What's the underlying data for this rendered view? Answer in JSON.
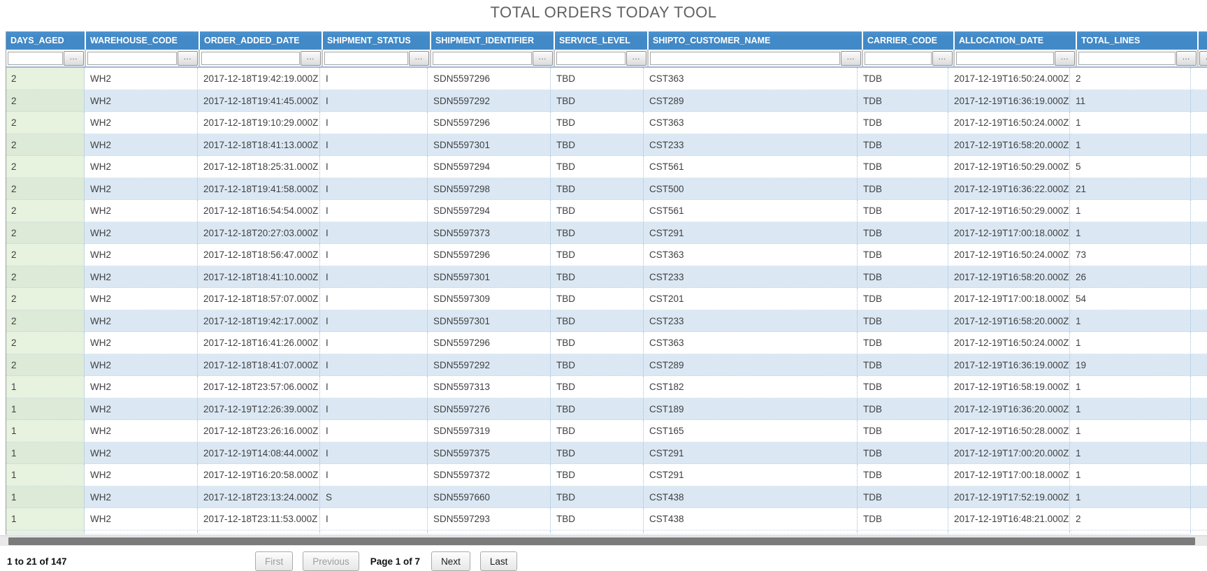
{
  "title": "TOTAL ORDERS TODAY TOOL",
  "table": {
    "columns": [
      {
        "label": "DAYS_AGED"
      },
      {
        "label": "WAREHOUSE_CODE"
      },
      {
        "label": "ORDER_ADDED_DATE"
      },
      {
        "label": "SHIPMENT_STATUS"
      },
      {
        "label": "SHIPMENT_IDENTIFIER"
      },
      {
        "label": "SERVICE_LEVEL"
      },
      {
        "label": "SHIPTO_CUSTOMER_NAME"
      },
      {
        "label": "CARRIER_CODE"
      },
      {
        "label": "ALLOCATION_DATE"
      },
      {
        "label": "TOTAL_LINES"
      }
    ],
    "filter_button_label": "...",
    "rows": [
      [
        "2",
        "WH2",
        "2017-12-18T19:42:19.000Z",
        "I",
        "SDN5597296",
        "TBD",
        "CST363",
        "TDB",
        "2017-12-19T16:50:24.000Z",
        "2"
      ],
      [
        "2",
        "WH2",
        "2017-12-18T19:41:45.000Z",
        "I",
        "SDN5597292",
        "TBD",
        "CST289",
        "TDB",
        "2017-12-19T16:36:19.000Z",
        "11"
      ],
      [
        "2",
        "WH2",
        "2017-12-18T19:10:29.000Z",
        "I",
        "SDN5597296",
        "TBD",
        "CST363",
        "TDB",
        "2017-12-19T16:50:24.000Z",
        "1"
      ],
      [
        "2",
        "WH2",
        "2017-12-18T18:41:13.000Z",
        "I",
        "SDN5597301",
        "TBD",
        "CST233",
        "TDB",
        "2017-12-19T16:58:20.000Z",
        "1"
      ],
      [
        "2",
        "WH2",
        "2017-12-18T18:25:31.000Z",
        "I",
        "SDN5597294",
        "TBD",
        "CST561",
        "TDB",
        "2017-12-19T16:50:29.000Z",
        "5"
      ],
      [
        "2",
        "WH2",
        "2017-12-18T19:41:58.000Z",
        "I",
        "SDN5597298",
        "TBD",
        "CST500",
        "TDB",
        "2017-12-19T16:36:22.000Z",
        "21"
      ],
      [
        "2",
        "WH2",
        "2017-12-18T16:54:54.000Z",
        "I",
        "SDN5597294",
        "TBD",
        "CST561",
        "TDB",
        "2017-12-19T16:50:29.000Z",
        "1"
      ],
      [
        "2",
        "WH2",
        "2017-12-18T20:27:03.000Z",
        "I",
        "SDN5597373",
        "TBD",
        "CST291",
        "TDB",
        "2017-12-19T17:00:18.000Z",
        "1"
      ],
      [
        "2",
        "WH2",
        "2017-12-18T18:56:47.000Z",
        "I",
        "SDN5597296",
        "TBD",
        "CST363",
        "TDB",
        "2017-12-19T16:50:24.000Z",
        "73"
      ],
      [
        "2",
        "WH2",
        "2017-12-18T18:41:10.000Z",
        "I",
        "SDN5597301",
        "TBD",
        "CST233",
        "TDB",
        "2017-12-19T16:58:20.000Z",
        "26"
      ],
      [
        "2",
        "WH2",
        "2017-12-18T18:57:07.000Z",
        "I",
        "SDN5597309",
        "TBD",
        "CST201",
        "TDB",
        "2017-12-19T17:00:18.000Z",
        "54"
      ],
      [
        "2",
        "WH2",
        "2017-12-18T19:42:17.000Z",
        "I",
        "SDN5597301",
        "TBD",
        "CST233",
        "TDB",
        "2017-12-19T16:58:20.000Z",
        "1"
      ],
      [
        "2",
        "WH2",
        "2017-12-18T16:41:26.000Z",
        "I",
        "SDN5597296",
        "TBD",
        "CST363",
        "TDB",
        "2017-12-19T16:50:24.000Z",
        "1"
      ],
      [
        "2",
        "WH2",
        "2017-12-18T18:41:07.000Z",
        "I",
        "SDN5597292",
        "TBD",
        "CST289",
        "TDB",
        "2017-12-19T16:36:19.000Z",
        "19"
      ],
      [
        "1",
        "WH2",
        "2017-12-18T23:57:06.000Z",
        "I",
        "SDN5597313",
        "TBD",
        "CST182",
        "TDB",
        "2017-12-19T16:58:19.000Z",
        "1"
      ],
      [
        "1",
        "WH2",
        "2017-12-19T12:26:39.000Z",
        "I",
        "SDN5597276",
        "TBD",
        "CST189",
        "TDB",
        "2017-12-19T16:36:20.000Z",
        "1"
      ],
      [
        "1",
        "WH2",
        "2017-12-18T23:26:16.000Z",
        "I",
        "SDN5597319",
        "TBD",
        "CST165",
        "TDB",
        "2017-12-19T16:50:28.000Z",
        "1"
      ],
      [
        "1",
        "WH2",
        "2017-12-19T14:08:44.000Z",
        "I",
        "SDN5597375",
        "TBD",
        "CST291",
        "TDB",
        "2017-12-19T17:00:20.000Z",
        "1"
      ],
      [
        "1",
        "WH2",
        "2017-12-19T16:20:58.000Z",
        "I",
        "SDN5597372",
        "TBD",
        "CST291",
        "TDB",
        "2017-12-19T17:00:18.000Z",
        "1"
      ],
      [
        "1",
        "WH2",
        "2017-12-18T23:13:24.000Z",
        "S",
        "SDN5597660",
        "TBD",
        "CST438",
        "TDB",
        "2017-12-19T17:52:19.000Z",
        "1"
      ],
      [
        "1",
        "WH2",
        "2017-12-18T23:11:53.000Z",
        "I",
        "SDN5597293",
        "TBD",
        "CST438",
        "TDB",
        "2017-12-19T16:48:21.000Z",
        "2"
      ]
    ]
  },
  "pagination": {
    "summary": "1 to 21 of 147",
    "first_label": "First",
    "previous_label": "Previous",
    "page_status": "Page 1 of 7",
    "next_label": "Next",
    "last_label": "Last"
  },
  "colors": {
    "header_bg": "#4189c7",
    "row_alt_bg": "#dbe8f4",
    "days_aged_bg": "#e7f2df"
  }
}
